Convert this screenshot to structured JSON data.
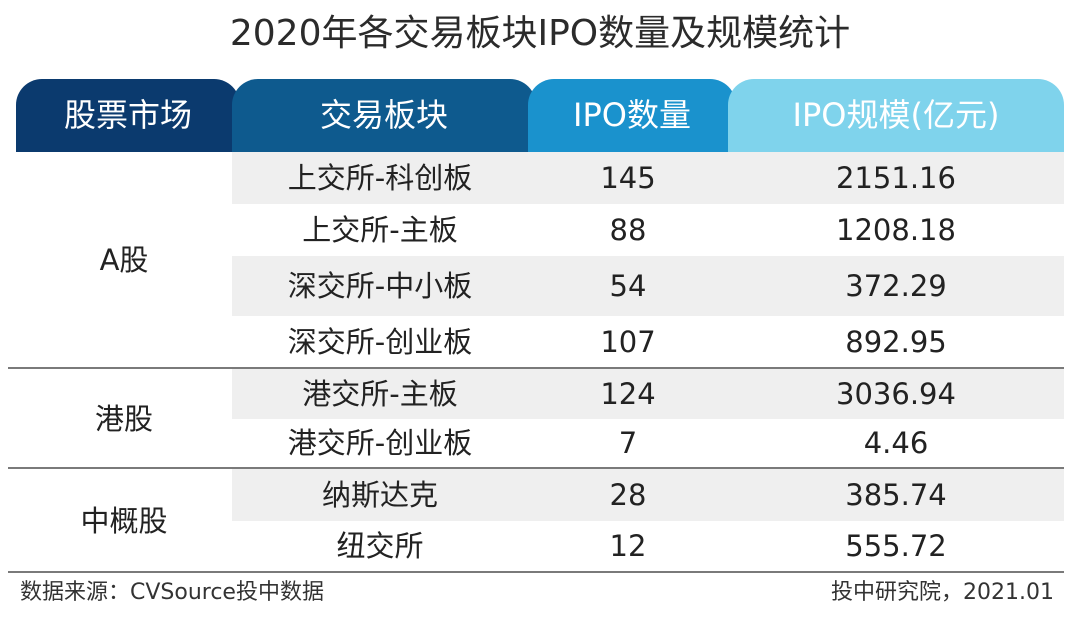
{
  "title": "2020年各交易板块IPO数量及规模统计",
  "colors": {
    "header_market": "#0b3a6e",
    "header_board": "#0e5a8e",
    "header_count": "#1a92cd",
    "header_scale": "#7fd3ec",
    "row_stripe": "#efefef"
  },
  "headers": {
    "market": "股票市场",
    "board": "交易板块",
    "count": "IPO数量",
    "scale": "IPO规模(亿元)"
  },
  "groups": [
    {
      "market": "A股",
      "rows": [
        {
          "board": "上交所-科创板",
          "count": "145",
          "scale": "2151.16"
        },
        {
          "board": "上交所-主板",
          "count": "88",
          "scale": "1208.18"
        },
        {
          "board": "深交所-中小板",
          "count": "54",
          "scale": "372.29"
        },
        {
          "board": "深交所-创业板",
          "count": "107",
          "scale": "892.95"
        }
      ]
    },
    {
      "market": "港股",
      "rows": [
        {
          "board": "港交所-主板",
          "count": "124",
          "scale": "3036.94"
        },
        {
          "board": "港交所-创业板",
          "count": "7",
          "scale": "4.46"
        }
      ]
    },
    {
      "market": "中概股",
      "rows": [
        {
          "board": "纳斯达克",
          "count": "28",
          "scale": "385.74"
        },
        {
          "board": "纽交所",
          "count": "12",
          "scale": "555.72"
        }
      ]
    }
  ],
  "footer": {
    "source": "数据来源：CVSource投中数据",
    "credit": "投中研究院，2021.01"
  }
}
